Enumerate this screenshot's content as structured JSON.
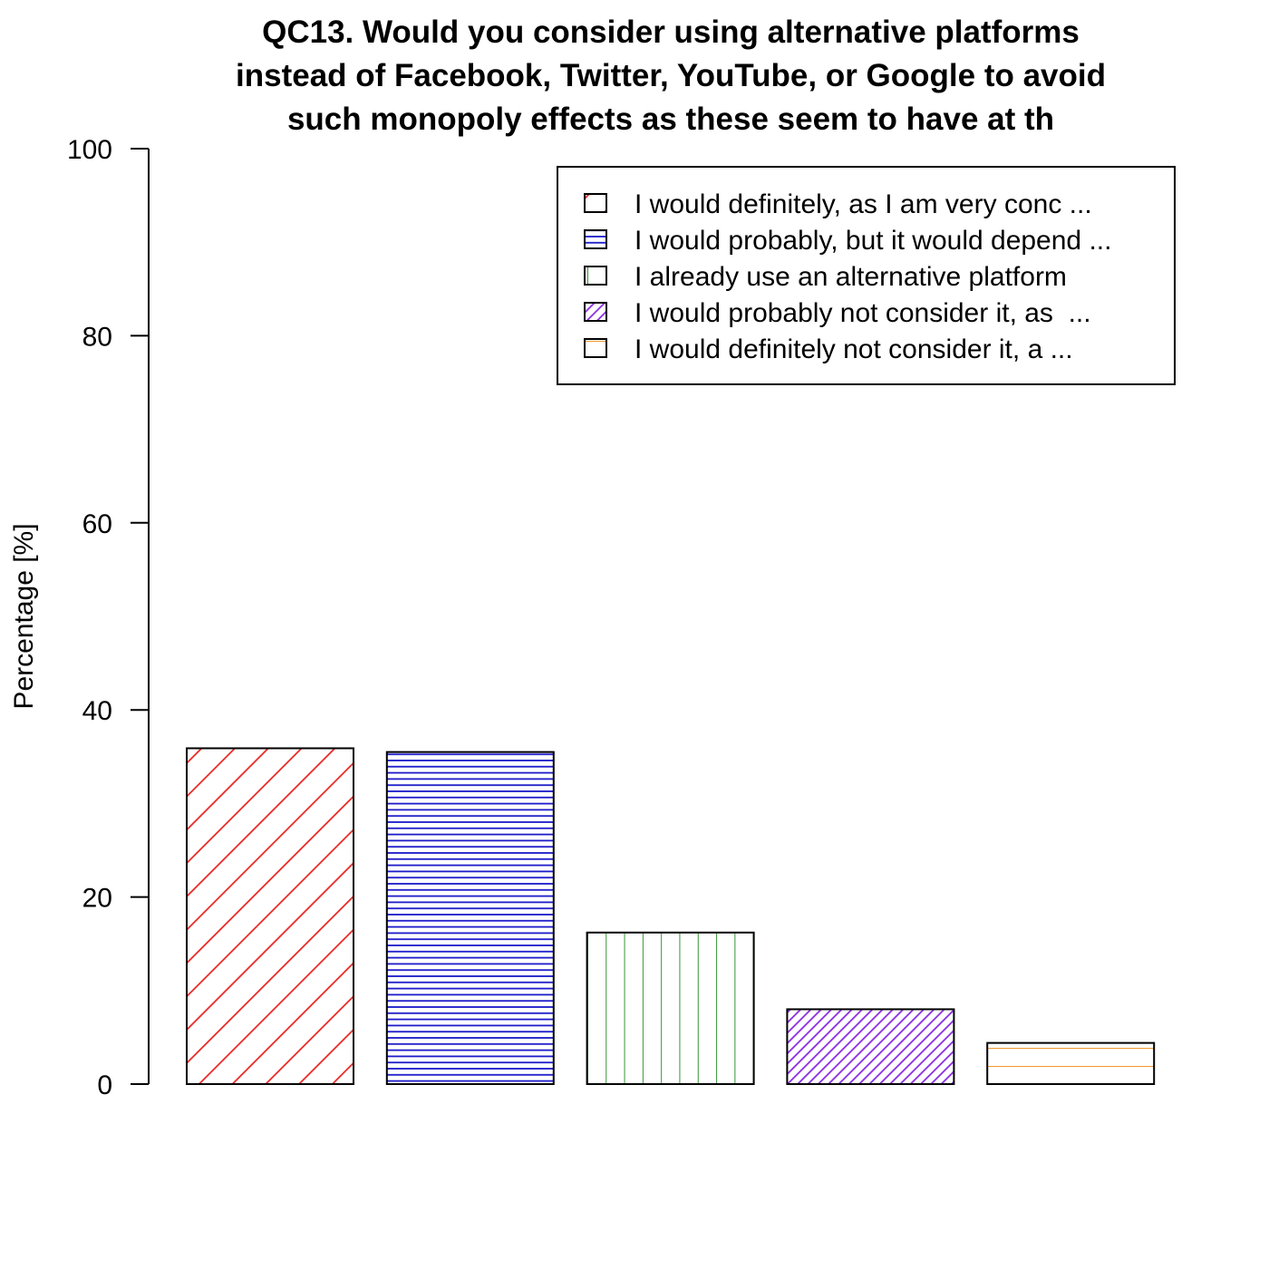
{
  "chart_data": {
    "type": "bar",
    "title_lines": [
      "QC13. Would you consider using alternative platforms",
      "instead of Facebook, Twitter, YouTube, or Google to avoid",
      "such monopoly effects as these seem to have at th"
    ],
    "xlabel": "",
    "ylabel": "Percentage [%]",
    "ylim": [
      0,
      100
    ],
    "yticks": [
      "0",
      "20",
      "40",
      "60",
      "80",
      "100"
    ],
    "grid": false,
    "legend_position": "top-right",
    "categories": [
      "I would definitely, as I am very conc ...",
      "I would probably, but it would depend ...",
      "I already use an alternative platform",
      "I would probably not consider it, as  ...",
      "I would definitely not consider it, a ..."
    ],
    "values": [
      35.9,
      35.5,
      16.2,
      8.0,
      4.4
    ],
    "colors": [
      "#e8231f",
      "#1a19c9",
      "#1f8a1f",
      "#8a2be2",
      "#ee8a16"
    ],
    "patterns": [
      "diagonal-wide",
      "horizontal-dense",
      "vertical",
      "diagonal-dense",
      "horizontal-sparse"
    ]
  }
}
